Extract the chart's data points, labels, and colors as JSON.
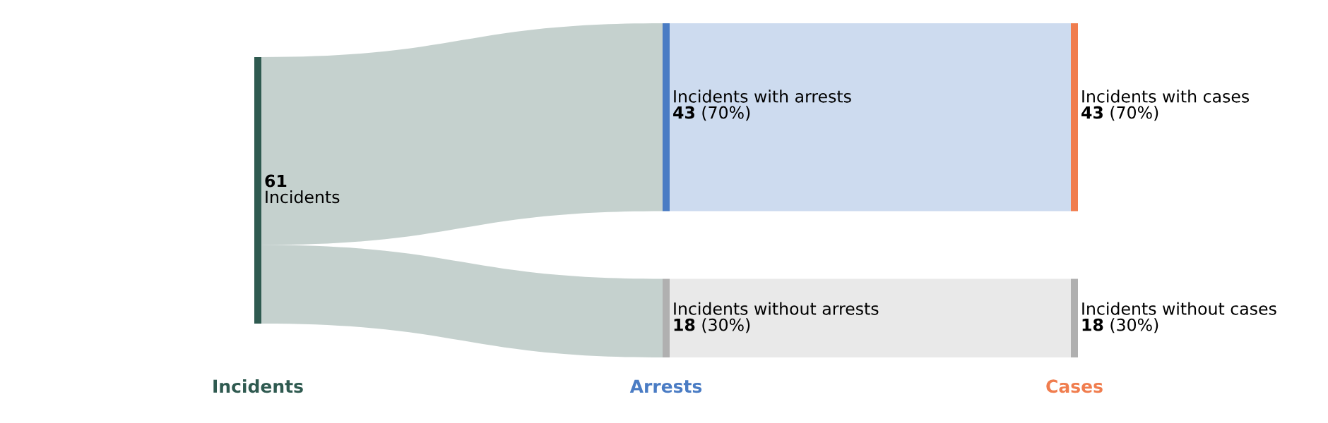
{
  "chart_data": {
    "type": "other",
    "categories": [
      "Incidents",
      "Incidents with arrests",
      "Incidents without arrests",
      "Incidents with cases",
      "Incidents without cases"
    ],
    "values": [
      61,
      43,
      18,
      43,
      18
    ],
    "colors": [
      "#2f5a50",
      "#4a7cc4",
      "#b0b0b0",
      "#f07d4e",
      "#b0b0b0"
    ],
    "value_labels": [
      "61",
      "43 (70%)",
      "18 (30%)",
      "43 (70%)",
      "18 (30%)"
    ],
    "annotations": [
      "Incidents",
      "Arrests",
      "Cases"
    ]
  }
}
